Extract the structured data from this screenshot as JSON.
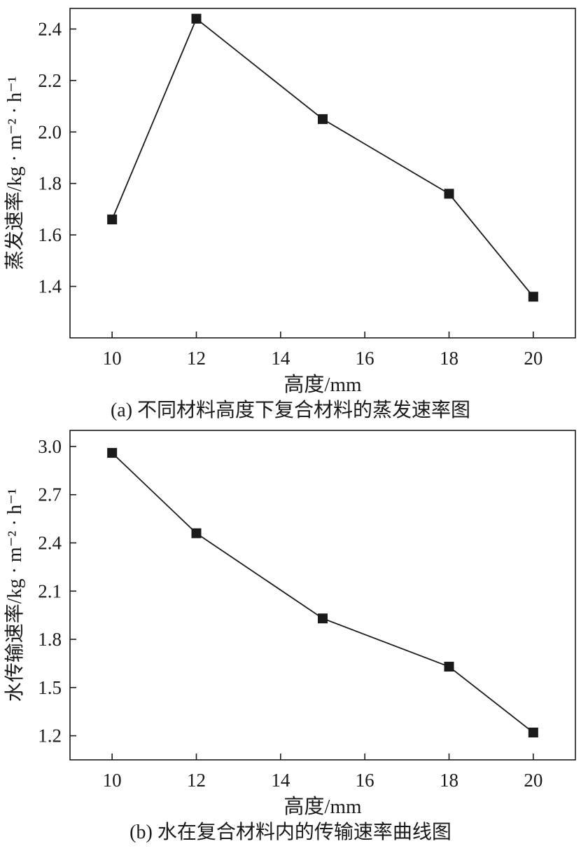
{
  "page": {
    "background": "#ffffff"
  },
  "chart_data": [
    {
      "type": "line",
      "x": [
        10,
        12,
        15,
        18,
        20
      ],
      "values": [
        1.66,
        2.44,
        2.05,
        1.76,
        1.36
      ],
      "title": "",
      "xlabel": "高度/mm",
      "ylabel": "蒸发速率/kg · m⁻² · h⁻¹",
      "caption": "(a) 不同材料高度下复合材料的蒸发速率图",
      "xlim": [
        9,
        21
      ],
      "ylim": [
        1.2,
        2.48
      ],
      "xtick_labels": [
        "10",
        "12",
        "14",
        "16",
        "18",
        "20"
      ],
      "ytick_labels": [
        "1.4",
        "1.6",
        "1.8",
        "2.0",
        "2.2",
        "2.4"
      ],
      "grid": false,
      "legend": "none",
      "marker": "filled-square",
      "line_color": "#1a1a1a"
    },
    {
      "type": "line",
      "x": [
        10,
        12,
        15,
        18,
        20
      ],
      "values": [
        2.96,
        2.46,
        1.93,
        1.63,
        1.22
      ],
      "title": "",
      "xlabel": "高度/mm",
      "ylabel": "水传输速率/kg · m⁻² · h⁻¹",
      "caption": "(b) 水在复合材料内的传输速率曲线图",
      "xlim": [
        9,
        21
      ],
      "ylim": [
        1.05,
        3.1
      ],
      "xtick_labels": [
        "10",
        "12",
        "14",
        "16",
        "18",
        "20"
      ],
      "ytick_labels": [
        "1.2",
        "1.5",
        "1.8",
        "2.1",
        "2.4",
        "2.7",
        "3.0"
      ],
      "grid": false,
      "legend": "none",
      "marker": "filled-square",
      "line_color": "#1a1a1a"
    }
  ]
}
